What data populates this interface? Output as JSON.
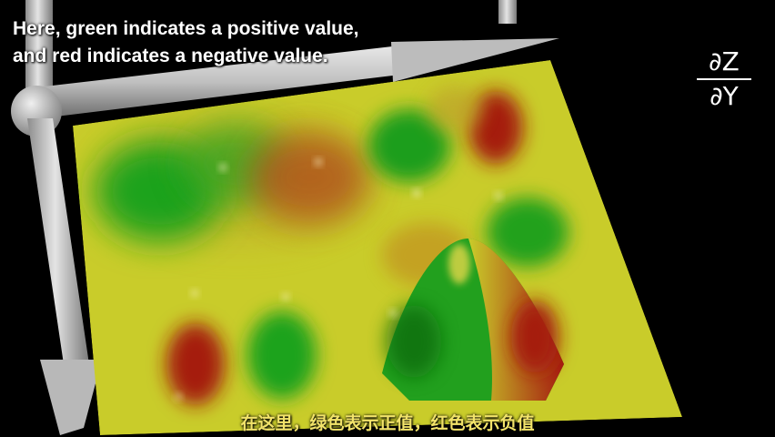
{
  "caption_en": {
    "line1": "Here, green indicates a positive value,",
    "line2": "and red indicates a negative value."
  },
  "derivative": {
    "numerator": "∂Z",
    "denominator": "∂Y"
  },
  "caption_zh": "在这里，绿色表示正值，红色表示负值",
  "colors": {
    "positive": "#1fa31f",
    "negative": "#a51c10",
    "zero": "#c9cc2a",
    "background": "#000000",
    "axis": "#c8c8c8"
  }
}
